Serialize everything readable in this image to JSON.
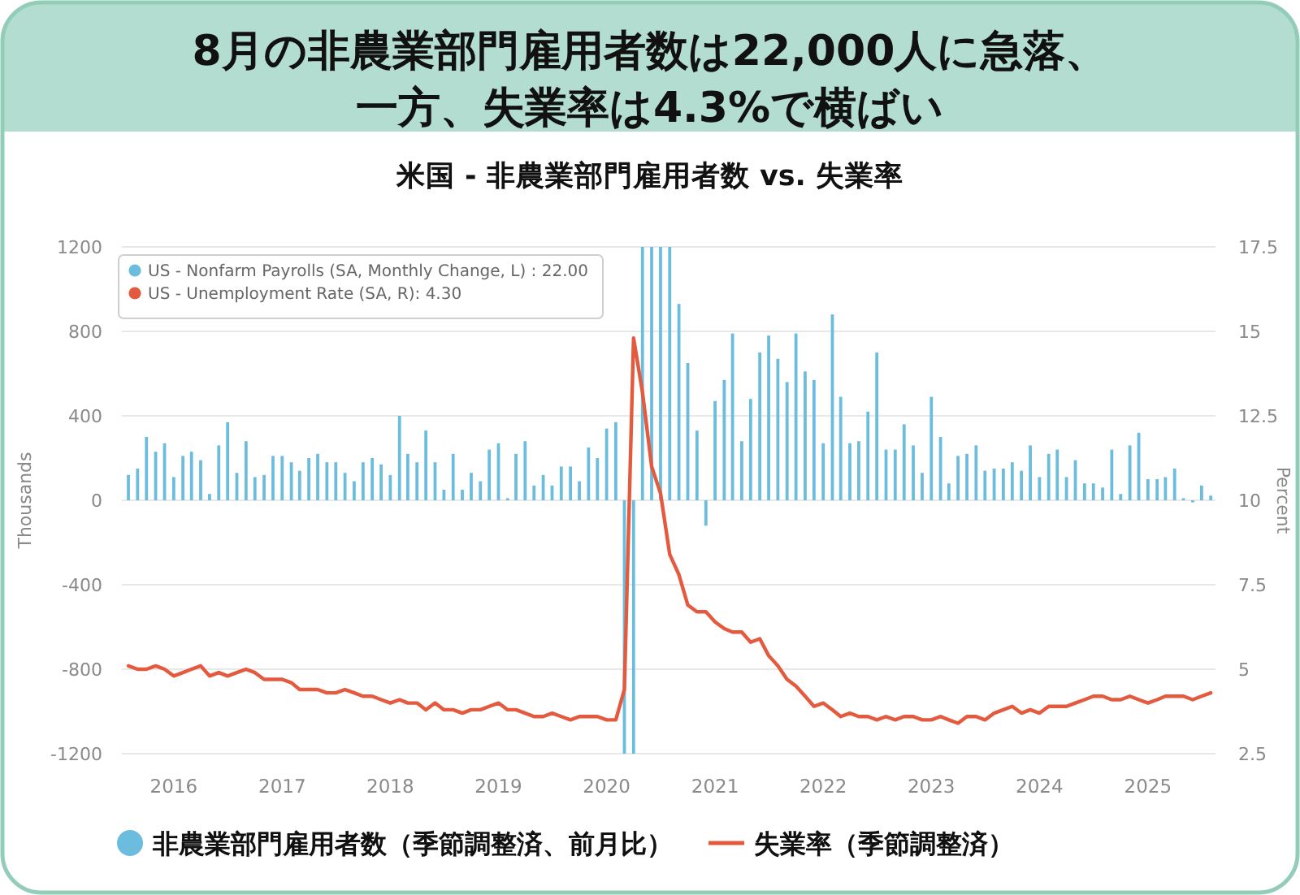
{
  "chart_data": {
    "type": "bar",
    "title": "8月の非農業部門雇用者数は22,000人に急落、一方、失業率は4.3%で横ばい",
    "subtitle": "米国 - 非農業部門雇用者数 vs. 失業率",
    "ylabel": "Thousands",
    "y2label": "Percent",
    "x": [
      "2015-08",
      "2015-09",
      "2015-10",
      "2015-11",
      "2015-12",
      "2016-01",
      "2016-02",
      "2016-03",
      "2016-04",
      "2016-05",
      "2016-06",
      "2016-07",
      "2016-08",
      "2016-09",
      "2016-10",
      "2016-11",
      "2016-12",
      "2017-01",
      "2017-02",
      "2017-03",
      "2017-04",
      "2017-05",
      "2017-06",
      "2017-07",
      "2017-08",
      "2017-09",
      "2017-10",
      "2017-11",
      "2017-12",
      "2018-01",
      "2018-02",
      "2018-03",
      "2018-04",
      "2018-05",
      "2018-06",
      "2018-07",
      "2018-08",
      "2018-09",
      "2018-10",
      "2018-11",
      "2018-12",
      "2019-01",
      "2019-02",
      "2019-03",
      "2019-04",
      "2019-05",
      "2019-06",
      "2019-07",
      "2019-08",
      "2019-09",
      "2019-10",
      "2019-11",
      "2019-12",
      "2020-01",
      "2020-02",
      "2020-03",
      "2020-04",
      "2020-05",
      "2020-06",
      "2020-07",
      "2020-08",
      "2020-09",
      "2020-10",
      "2020-11",
      "2020-12",
      "2021-01",
      "2021-02",
      "2021-03",
      "2021-04",
      "2021-05",
      "2021-06",
      "2021-07",
      "2021-08",
      "2021-09",
      "2021-10",
      "2021-11",
      "2021-12",
      "2022-01",
      "2022-02",
      "2022-03",
      "2022-04",
      "2022-05",
      "2022-06",
      "2022-07",
      "2022-08",
      "2022-09",
      "2022-10",
      "2022-11",
      "2022-12",
      "2023-01",
      "2023-02",
      "2023-03",
      "2023-04",
      "2023-05",
      "2023-06",
      "2023-07",
      "2023-08",
      "2023-09",
      "2023-10",
      "2023-11",
      "2023-12",
      "2024-01",
      "2024-02",
      "2024-03",
      "2024-04",
      "2024-05",
      "2024-06",
      "2024-07",
      "2024-08",
      "2024-09",
      "2024-10",
      "2024-11",
      "2024-12",
      "2025-01",
      "2025-02",
      "2025-03",
      "2025-04",
      "2025-05",
      "2025-06",
      "2025-07",
      "2025-08"
    ],
    "xlim": [
      "2015-07-10",
      "2025-08-17"
    ],
    "xticks": [
      "2016",
      "2017",
      "2018",
      "2019",
      "2020",
      "2021",
      "2022",
      "2023",
      "2024",
      "2025"
    ],
    "ylim": [
      -1200,
      1200
    ],
    "yticks": [
      -1200,
      -800,
      -400,
      0,
      400,
      800,
      1200
    ],
    "y2lim": [
      2.5,
      17.5
    ],
    "y2ticks": [
      2.5,
      5,
      7.5,
      10,
      12.5,
      15,
      17.5
    ],
    "grid": "y",
    "legend": "bottom",
    "series": [
      {
        "name": "非農業部門雇用者数（季節調整済、前月比）",
        "color": "#6cbddd",
        "values": [
          120,
          150,
          300,
          230,
          270,
          110,
          210,
          230,
          190,
          30,
          260,
          370,
          130,
          280,
          110,
          120,
          210,
          210,
          180,
          140,
          200,
          220,
          180,
          180,
          130,
          90,
          180,
          200,
          170,
          120,
          400,
          220,
          180,
          330,
          180,
          50,
          220,
          50,
          130,
          90,
          240,
          270,
          10,
          220,
          280,
          70,
          120,
          70,
          160,
          160,
          90,
          250,
          200,
          340,
          370,
          -1200,
          -1200,
          1200,
          1200,
          1200,
          1200,
          930,
          650,
          330,
          -120,
          470,
          570,
          790,
          280,
          480,
          700,
          780,
          670,
          560,
          790,
          610,
          570,
          270,
          880,
          490,
          270,
          280,
          420,
          700,
          240,
          240,
          360,
          260,
          130,
          490,
          300,
          80,
          210,
          220,
          260,
          140,
          150,
          150,
          180,
          140,
          260,
          110,
          220,
          240,
          110,
          190,
          80,
          80,
          60,
          240,
          30,
          260,
          320,
          100,
          100,
          110,
          150,
          10,
          -10,
          70,
          22
        ]
      },
      {
        "name": "失業率（季節調整済）",
        "type": "line",
        "axis": "y2",
        "color": "#e35a3e",
        "values": [
          5.1,
          5.0,
          5.0,
          5.1,
          5.0,
          4.8,
          4.9,
          5.0,
          5.1,
          4.8,
          4.9,
          4.8,
          4.9,
          5.0,
          4.9,
          4.7,
          4.7,
          4.7,
          4.6,
          4.4,
          4.4,
          4.4,
          4.3,
          4.3,
          4.4,
          4.3,
          4.2,
          4.2,
          4.1,
          4.0,
          4.1,
          4.0,
          4.0,
          3.8,
          4.0,
          3.8,
          3.8,
          3.7,
          3.8,
          3.8,
          3.9,
          4.0,
          3.8,
          3.8,
          3.7,
          3.6,
          3.6,
          3.7,
          3.6,
          3.5,
          3.6,
          3.6,
          3.6,
          3.5,
          3.5,
          4.4,
          14.8,
          13.2,
          11.0,
          10.2,
          8.4,
          7.8,
          6.9,
          6.7,
          6.7,
          6.4,
          6.2,
          6.1,
          6.1,
          5.8,
          5.9,
          5.4,
          5.1,
          4.7,
          4.5,
          4.2,
          3.9,
          4.0,
          3.8,
          3.6,
          3.7,
          3.6,
          3.6,
          3.5,
          3.6,
          3.5,
          3.6,
          3.6,
          3.5,
          3.5,
          3.6,
          3.5,
          3.4,
          3.6,
          3.6,
          3.5,
          3.7,
          3.8,
          3.9,
          3.7,
          3.8,
          3.7,
          3.9,
          3.9,
          3.9,
          4.0,
          4.1,
          4.2,
          4.2,
          4.1,
          4.1,
          4.2,
          4.1,
          4.0,
          4.1,
          4.2,
          4.2,
          4.2,
          4.1,
          4.2,
          4.3
        ]
      }
    ],
    "annotations": [
      "US - Nonfarm Payrolls (SA, Monthly Change, L) : 22.00",
      "US - Unemployment Rate (SA, R): 4.30"
    ]
  }
}
